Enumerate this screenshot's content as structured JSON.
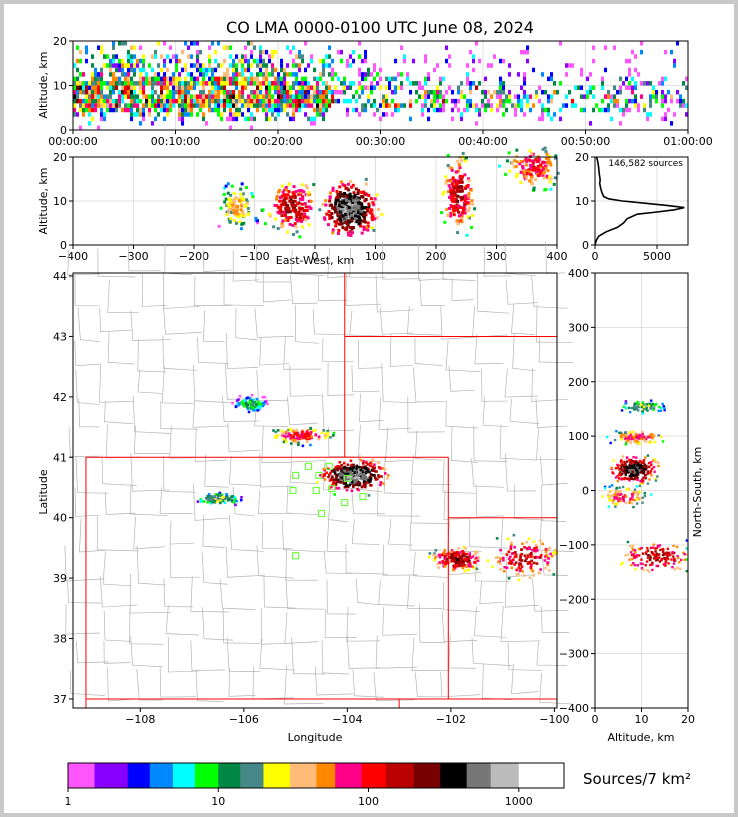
{
  "title": "CO LMA 0000-0100 UTC June 08, 2024",
  "colors": {
    "palette": [
      "#ff55ff",
      "#8800ff",
      "#0000ff",
      "#0088ff",
      "#00ffff",
      "#00ff00",
      "#008844",
      "#448888",
      "#ffff00",
      "#ffbb77",
      "#ff8800",
      "#ff0088",
      "#ff0000",
      "#bb0000",
      "#770000",
      "#000000",
      "#777777",
      "#bbbbbb",
      "#ffffff"
    ],
    "state_border": "#ff0000",
    "county_border": "#b4b4b4",
    "station_marker": "#66ff33"
  },
  "chart_data": [
    {
      "id": "time-height",
      "type": "heatmap",
      "xlabel": "",
      "ylabel": "Altitude, km",
      "xlim": [
        "00:00:00",
        "01:00:00"
      ],
      "ylim": [
        0,
        20
      ],
      "xticks": [
        "00:00:00",
        "00:10:00",
        "00:20:00",
        "00:30:00",
        "00:40:00",
        "00:50:00",
        "01:00:00"
      ],
      "yticks": [
        "0",
        "10",
        "20"
      ]
    },
    {
      "id": "ew-height",
      "type": "heatmap",
      "xlabel": "East-West, km",
      "ylabel": "Altitude, km",
      "xlim": [
        -400,
        400
      ],
      "ylim": [
        0,
        20
      ],
      "xticks": [
        "−400",
        "−300",
        "−200",
        "−100",
        "0",
        "100",
        "200",
        "300",
        "400"
      ],
      "yticks": [
        "0",
        "10",
        "20"
      ],
      "cells": [
        {
          "x": -130,
          "z": 9,
          "sx": 18,
          "sz": 3,
          "n": 60
        },
        {
          "x": -40,
          "z": 9,
          "sx": 25,
          "sz": 3.5,
          "n": 250
        },
        {
          "x": 55,
          "z": 8.5,
          "sx": 25,
          "sz": 3.5,
          "n": 900
        },
        {
          "x": 235,
          "z": 12,
          "sx": 15,
          "sz": 5,
          "n": 250
        },
        {
          "x": 360,
          "z": 18,
          "sx": 28,
          "sz": 3,
          "n": 140
        }
      ]
    },
    {
      "id": "histogram",
      "type": "line",
      "note": "146,582 sources",
      "xlim": [
        0,
        7500
      ],
      "ylim": [
        0,
        20
      ],
      "xticks": [
        "0",
        "5000"
      ],
      "yticks": [
        "0",
        "10",
        "20"
      ],
      "x": [
        0,
        100,
        300,
        900,
        1800,
        2300,
        2600,
        3400,
        5000,
        6400,
        7200,
        5800,
        4000,
        2200,
        1100,
        700,
        550,
        450,
        380,
        420,
        380,
        330,
        300,
        250,
        180,
        120
      ],
      "y": [
        0,
        1,
        2,
        3,
        4,
        5,
        6,
        7,
        7.5,
        8,
        8.5,
        9,
        9.5,
        10,
        10.5,
        11,
        12,
        13,
        14,
        14.8,
        15.5,
        16.5,
        17.5,
        18.5,
        19.5,
        20
      ]
    },
    {
      "id": "plan-view",
      "type": "heatmap",
      "xlabel": "Longitude",
      "ylabel": "Latitude",
      "xlim": [
        -109.3,
        -99.95
      ],
      "ylim": [
        36.85,
        44.05
      ],
      "xticks": [
        "−108",
        "−106",
        "−104",
        "−102",
        "−100"
      ],
      "yticks": [
        "37",
        "38",
        "39",
        "40",
        "41",
        "42",
        "43",
        "44"
      ],
      "cells": [
        {
          "lon": -105.9,
          "lat": 41.9,
          "slon": 0.2,
          "slat": 0.08,
          "n": 15
        },
        {
          "lon": -104.9,
          "lat": 41.38,
          "slon": 0.35,
          "slat": 0.08,
          "n": 150
        },
        {
          "lon": -103.9,
          "lat": 40.72,
          "slon": 0.35,
          "slat": 0.15,
          "n": 900
        },
        {
          "lon": -106.5,
          "lat": 40.33,
          "slon": 0.25,
          "slat": 0.06,
          "n": 30
        },
        {
          "lon": -101.9,
          "lat": 39.33,
          "slon": 0.3,
          "slat": 0.12,
          "n": 300
        },
        {
          "lon": -100.6,
          "lat": 39.35,
          "slon": 0.45,
          "slat": 0.22,
          "n": 200
        }
      ],
      "stations": [
        {
          "lon": -104.75,
          "lat": 40.85
        },
        {
          "lon": -104.35,
          "lat": 40.85
        },
        {
          "lon": -105.0,
          "lat": 40.7
        },
        {
          "lon": -104.55,
          "lat": 40.7
        },
        {
          "lon": -104.0,
          "lat": 40.65
        },
        {
          "lon": -105.05,
          "lat": 40.45
        },
        {
          "lon": -104.6,
          "lat": 40.45
        },
        {
          "lon": -104.3,
          "lat": 40.48
        },
        {
          "lon": -103.7,
          "lat": 40.35
        },
        {
          "lon": -104.05,
          "lat": 40.25
        },
        {
          "lon": -104.5,
          "lat": 40.07
        },
        {
          "lon": -105.0,
          "lat": 39.37
        }
      ]
    },
    {
      "id": "height-ns",
      "type": "heatmap",
      "xlabel": "Altitude, km",
      "ylabel": "North-South, km",
      "xlim": [
        0,
        20
      ],
      "ylim": [
        -400,
        400
      ],
      "xticks": [
        "0",
        "10",
        "20"
      ],
      "yticks": [
        "−400",
        "−300",
        "−200",
        "−100",
        "0",
        "100",
        "200",
        "300",
        "400"
      ],
      "cells": [
        {
          "z": 10,
          "y": 155,
          "sz": 3,
          "sy": 8,
          "n": 25
        },
        {
          "z": 9,
          "y": 100,
          "sz": 3.5,
          "sy": 8,
          "n": 120
        },
        {
          "z": 8,
          "y": 40,
          "sz": 3,
          "sy": 15,
          "n": 600
        },
        {
          "z": 6,
          "y": -10,
          "sz": 3,
          "sy": 12,
          "n": 120
        },
        {
          "z": 13,
          "y": -120,
          "sz": 5,
          "sy": 18,
          "n": 250
        }
      ]
    },
    {
      "id": "colorbar",
      "type": "bar",
      "title": "Sources/7 km²",
      "scale": "log",
      "range": [
        1,
        2000
      ],
      "ticks": [
        "1",
        "10",
        "100",
        "1000"
      ]
    }
  ]
}
